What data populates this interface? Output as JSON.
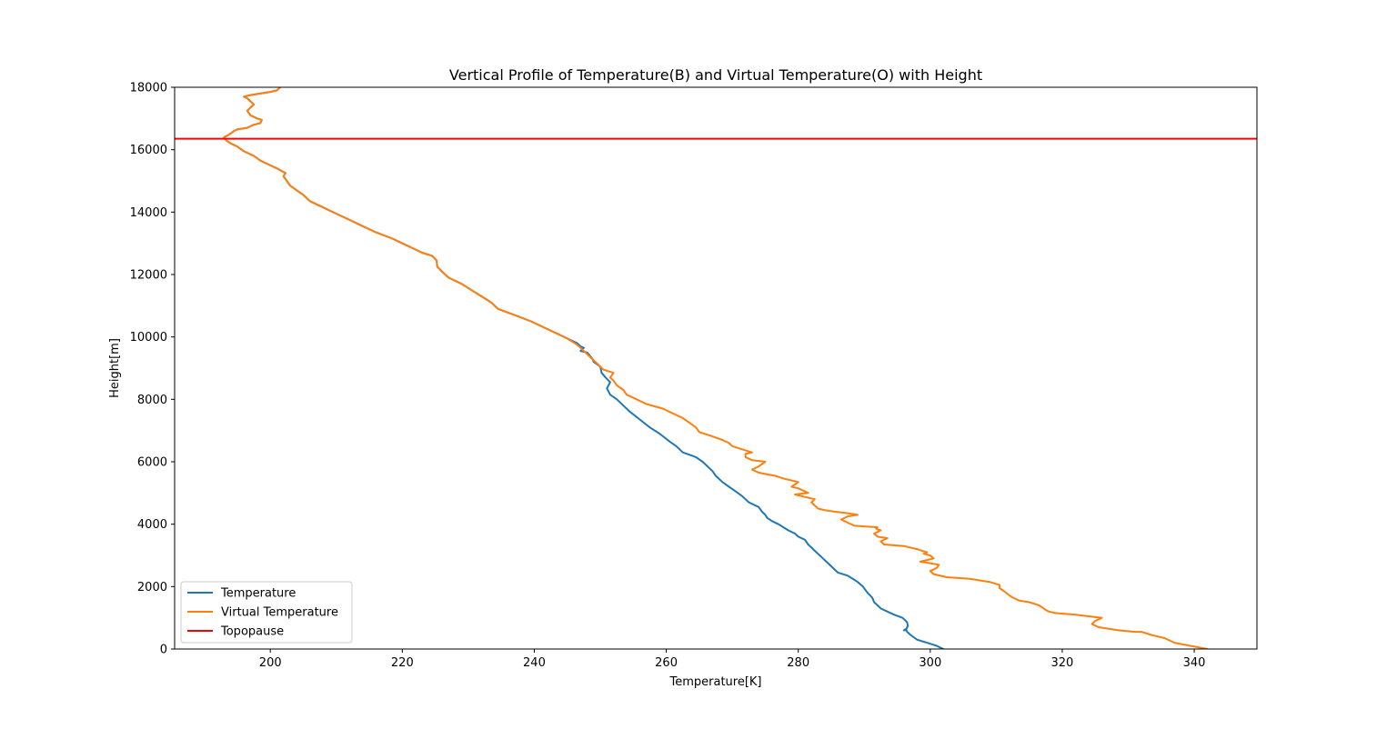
{
  "chart_data": {
    "type": "line",
    "title": "Vertical Profile of Temperature(B) and Virtual Temperature(O) with Height",
    "xlabel": "Temperature[K]",
    "ylabel": "Height[m]",
    "xlim": [
      185.5,
      349.5
    ],
    "ylim": [
      0,
      18000
    ],
    "xticks": [
      200,
      220,
      240,
      260,
      280,
      300,
      320,
      340
    ],
    "yticks": [
      0,
      2000,
      4000,
      6000,
      8000,
      10000,
      12000,
      14000,
      16000,
      18000
    ],
    "grid": false,
    "legend_position": "lower-left",
    "series": [
      {
        "name": "Temperature",
        "color": "#1f77b4",
        "x": [
          302.0,
          301.0,
          299.5,
          298.0,
          297.0,
          296.5,
          296.4,
          296.0,
          296.4,
          296.6,
          296.5,
          296.3,
          295.8,
          294.5,
          293.5,
          292.5,
          292.0,
          291.5,
          291.2,
          290.5,
          289.8,
          289.0,
          287.5,
          286.0,
          285.5,
          285.0,
          284.5,
          284.0,
          283.5,
          283.0,
          282.5,
          281.5,
          281.0,
          280.0,
          279.5,
          278.5,
          277.0,
          276.0,
          275.3,
          275.0,
          274.5,
          274.0,
          272.5,
          271.5,
          270.5,
          269.5,
          268.5,
          267.5,
          267.0,
          266.0,
          265.5,
          264.5,
          262.5,
          261.5,
          260.5,
          259.0,
          257.5,
          256.0,
          254.5,
          253.5,
          252.5,
          251.5,
          251.0,
          251.5,
          250.8,
          250.2,
          250.0,
          249.0,
          248.8,
          248.0,
          247.0,
          247.5,
          247.0,
          246.5,
          245.0,
          243.5,
          241.5,
          239.5,
          237.0,
          234.5,
          233.5,
          232.0,
          230.5,
          229.0,
          227.0,
          226.0,
          225.3,
          225.2,
          224.5,
          223.0,
          222.0,
          220.0,
          218.5,
          216.0,
          214.0,
          212.0,
          210.0,
          208.0,
          206.0,
          205.0,
          204.0,
          203.0,
          202.5,
          202.0,
          202.3,
          201.0,
          199.5,
          198.5,
          197.5,
          196.0,
          195.0,
          194.0,
          193.3,
          193.0,
          193.5,
          194.2,
          194.5,
          195.0,
          196.5,
          197.5,
          198.5,
          198.7,
          198.0,
          197.0,
          196.5,
          197.0,
          197.5,
          197.0,
          196.5,
          196.0,
          197.0,
          198.5,
          200.0,
          201.0,
          201.5
        ],
        "y": [
          0,
          100,
          200,
          300,
          450,
          550,
          600,
          600,
          650,
          750,
          850,
          900,
          1000,
          1100,
          1200,
          1300,
          1400,
          1500,
          1650,
          1800,
          2000,
          2150,
          2350,
          2450,
          2550,
          2650,
          2750,
          2850,
          2950,
          3050,
          3150,
          3350,
          3500,
          3600,
          3700,
          3800,
          4000,
          4100,
          4200,
          4300,
          4400,
          4550,
          4700,
          4900,
          5050,
          5200,
          5350,
          5550,
          5700,
          5900,
          6000,
          6150,
          6300,
          6500,
          6650,
          6900,
          7100,
          7350,
          7600,
          7800,
          8000,
          8150,
          8350,
          8550,
          8700,
          8850,
          9050,
          9200,
          9300,
          9500,
          9550,
          9650,
          9700,
          9800,
          9950,
          10100,
          10300,
          10500,
          10700,
          10900,
          11100,
          11300,
          11500,
          11700,
          11900,
          12100,
          12250,
          12450,
          12600,
          12700,
          12800,
          13000,
          13150,
          13350,
          13550,
          13750,
          13950,
          14150,
          14350,
          14550,
          14700,
          14850,
          15000,
          15150,
          15250,
          15400,
          15550,
          15650,
          15800,
          15950,
          16100,
          16200,
          16300,
          16400,
          16450,
          16550,
          16600,
          16650,
          16700,
          16800,
          16850,
          16950,
          17000,
          17100,
          17250,
          17350,
          17450,
          17550,
          17650,
          17700,
          17750,
          17800,
          17850,
          17900,
          18000
        ]
      },
      {
        "name": "Virtual Temperature",
        "color": "#ff7f0e",
        "x": [
          342.0,
          339.5,
          337.0,
          335.5,
          333.5,
          332.0,
          331.0,
          328.5,
          325.5,
          324.5,
          325.0,
          326.0,
          324.0,
          322.0,
          319.0,
          318.0,
          317.5,
          317.2,
          316.5,
          315.0,
          313.5,
          312.5,
          311.8,
          311.2,
          310.5,
          310.5,
          309.0,
          306.0,
          302.5,
          300.5,
          300.0,
          301.0,
          301.3,
          300.0,
          298.5,
          300.5,
          300.0,
          299.0,
          299.5,
          298.0,
          296.0,
          293.0,
          292.5,
          293.5,
          292.0,
          291.5,
          292.5,
          291.8,
          292.0,
          288.5,
          287.5,
          286.5,
          287.5,
          289.0,
          287.5,
          285.5,
          284.0,
          283.0,
          282.5,
          282.0,
          282.5,
          281.5,
          280.5,
          279.5,
          281.5,
          280.0,
          279.0,
          280.0,
          278.0,
          276.5,
          274.0,
          273.0,
          274.0,
          275.0,
          273.0,
          272.0,
          272.0,
          273.0,
          271.5,
          270.0,
          269.5,
          268.5,
          266.5,
          265.0,
          264.5,
          263.5,
          262.5,
          261.0,
          259.5,
          257.0,
          255.5,
          254.0,
          253.5,
          252.5,
          252.0,
          251.5,
          252.0,
          250.5,
          250.0,
          249.5,
          249.0,
          248.5,
          248.0,
          247.5,
          247.0,
          246.5,
          245.0,
          243.5,
          241.5,
          239.5,
          237.0,
          234.5,
          233.5,
          232.0,
          230.5,
          229.0,
          227.0,
          226.0,
          225.3,
          225.2,
          224.5,
          223.0,
          222.0,
          220.0,
          218.5,
          216.0,
          214.0,
          212.0,
          210.0,
          208.0,
          206.0,
          205.0,
          204.0,
          203.0,
          202.5,
          202.0,
          202.3,
          201.0,
          199.5,
          198.5,
          197.5,
          196.0,
          195.0,
          194.0,
          193.3,
          193.0,
          193.5,
          194.2,
          194.5,
          195.0,
          196.5,
          197.5,
          198.5,
          198.7,
          198.0,
          197.0,
          196.5,
          197.0,
          197.5,
          197.0,
          196.5,
          196.0,
          197.0,
          198.5,
          200.0,
          201.0,
          201.5
        ],
        "y": [
          0,
          100,
          200,
          350,
          450,
          550,
          550,
          600,
          700,
          800,
          900,
          1000,
          1050,
          1100,
          1150,
          1200,
          1250,
          1300,
          1400,
          1500,
          1550,
          1650,
          1750,
          1850,
          1950,
          2050,
          2150,
          2250,
          2300,
          2400,
          2500,
          2600,
          2700,
          2750,
          2800,
          2900,
          3000,
          3050,
          3100,
          3200,
          3300,
          3350,
          3450,
          3550,
          3600,
          3700,
          3800,
          3850,
          3900,
          3950,
          4050,
          4150,
          4250,
          4300,
          4350,
          4400,
          4450,
          4500,
          4600,
          4700,
          4800,
          4850,
          4900,
          4950,
          5000,
          5150,
          5200,
          5350,
          5450,
          5550,
          5650,
          5750,
          5850,
          6000,
          6050,
          6150,
          6250,
          6300,
          6400,
          6500,
          6600,
          6700,
          6850,
          6950,
          7100,
          7250,
          7400,
          7550,
          7700,
          7850,
          8000,
          8150,
          8300,
          8450,
          8600,
          8700,
          8850,
          8950,
          9050,
          9150,
          9250,
          9350,
          9450,
          9550,
          9650,
          9750,
          9950,
          10100,
          10300,
          10500,
          10700,
          10900,
          11100,
          11300,
          11500,
          11700,
          11900,
          12100,
          12250,
          12450,
          12600,
          12700,
          12800,
          13000,
          13150,
          13350,
          13550,
          13750,
          13950,
          14150,
          14350,
          14550,
          14700,
          14850,
          15000,
          15150,
          15250,
          15400,
          15550,
          15650,
          15800,
          15950,
          16100,
          16200,
          16300,
          16400,
          16450,
          16550,
          16600,
          16650,
          16700,
          16800,
          16850,
          16950,
          17000,
          17100,
          17250,
          17350,
          17450,
          17550,
          17650,
          17700,
          17750,
          17800,
          17850,
          17900,
          18000
        ]
      },
      {
        "name": "Topopause",
        "color": "#ff0000",
        "type": "hline",
        "y": 16350
      }
    ]
  }
}
